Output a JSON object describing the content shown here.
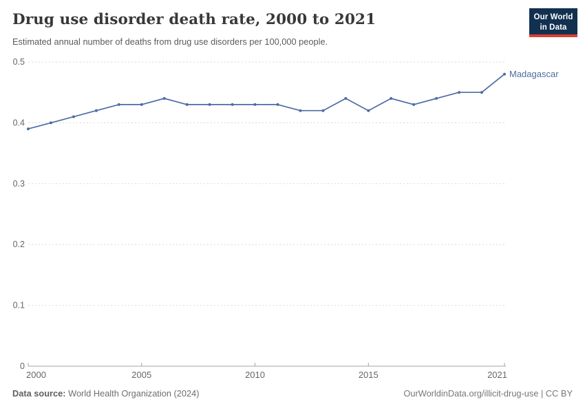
{
  "header": {
    "title": "Drug use disorder death rate, 2000 to 2021",
    "subtitle": "Estimated annual number of deaths from drug use disorders per 100,000 people.",
    "logo": {
      "line1": "Our World",
      "line2": "in Data",
      "bg_color": "#12304f",
      "stripe_color": "#dc3d33"
    }
  },
  "chart_data": {
    "type": "line",
    "title": "Drug use disorder death rate, 2000 to 2021",
    "xlabel": "",
    "ylabel": "",
    "x": [
      2000,
      2001,
      2002,
      2003,
      2004,
      2005,
      2006,
      2007,
      2008,
      2009,
      2010,
      2011,
      2012,
      2013,
      2014,
      2015,
      2016,
      2017,
      2018,
      2019,
      2020,
      2021
    ],
    "series": [
      {
        "name": "Madagascar",
        "color": "#4d6ba4",
        "values": [
          0.39,
          0.4,
          0.41,
          0.42,
          0.43,
          0.43,
          0.44,
          0.43,
          0.43,
          0.43,
          0.43,
          0.43,
          0.42,
          0.42,
          0.44,
          0.42,
          0.44,
          0.43,
          0.44,
          0.45,
          0.45,
          0.48
        ]
      }
    ],
    "ylim": [
      0,
      0.5
    ],
    "yticks": [
      0,
      0.1,
      0.2,
      0.3,
      0.4,
      0.5
    ],
    "xticks": [
      2000,
      2005,
      2010,
      2015,
      2021
    ],
    "grid": "horizontal-dashed",
    "legend_position": "end-of-line-label",
    "colors": {
      "grid": "#d9d9d9",
      "axis": "#a3a3a3",
      "tick_label": "#666666"
    }
  },
  "footer": {
    "source_label": "Data source:",
    "source_text": "World Health Organization (2024)",
    "right_text": "OurWorldinData.org/illicit-drug-use | CC BY"
  }
}
